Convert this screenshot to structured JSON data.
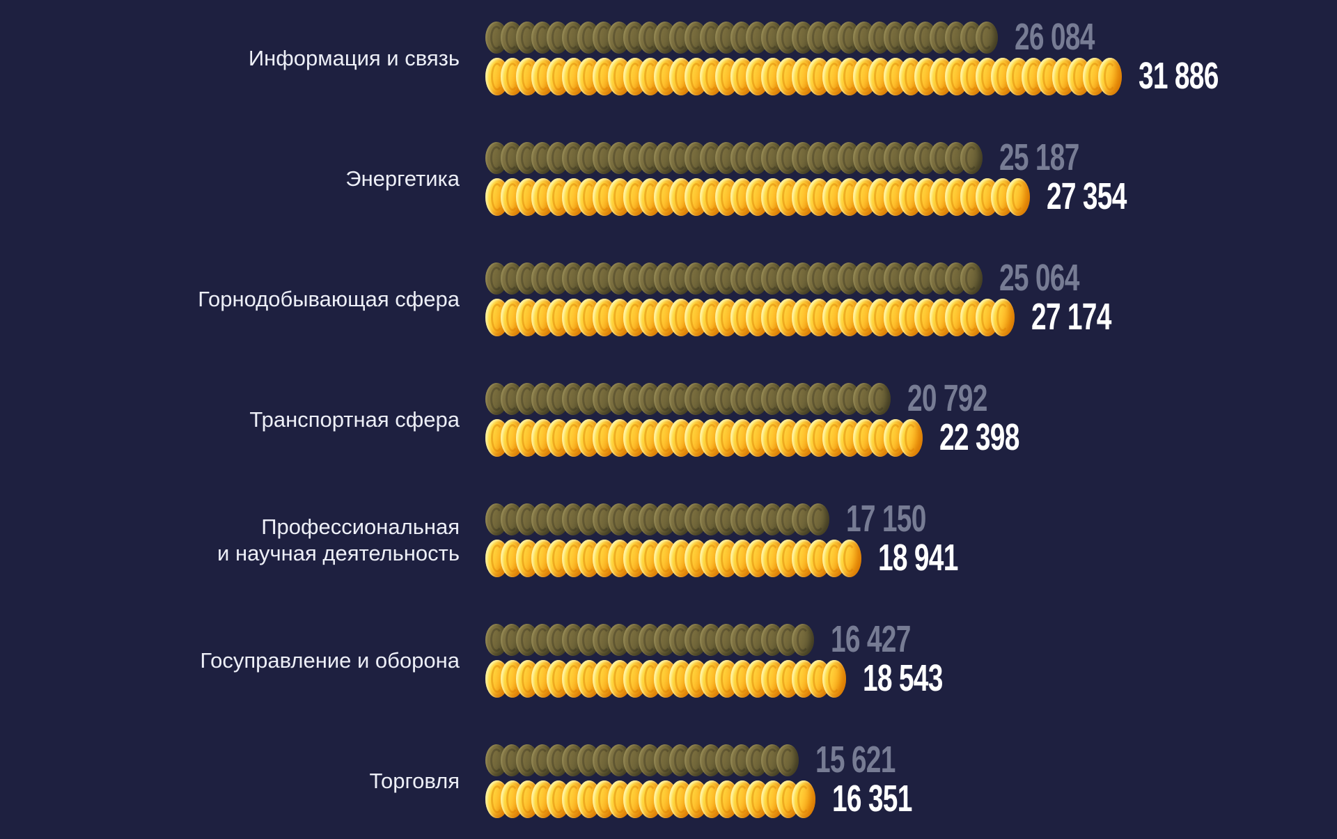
{
  "colors": {
    "background": "#1e2040",
    "label_text": "#edeff7",
    "secondary_value_text": "#777c94",
    "primary_value_text": "#ffffff",
    "gold_coin_bright": "#ffd83f",
    "gold_coin_deep": "#e98900",
    "dark_coin_light": "#867a4a",
    "dark_coin_deep": "#575030"
  },
  "chart_data": {
    "type": "bar",
    "orientation": "horizontal",
    "title": "",
    "xlabel": "",
    "ylabel": "",
    "grid": false,
    "legend_position": "none",
    "max_value": 31886,
    "categories": [
      "Информация и связь",
      "Энергетика",
      "Горнодобывающая сфера",
      "Транспортная сфера",
      "Профессиональная и научная деятельность",
      "Госуправление и оборона",
      "Торговля"
    ],
    "series": [
      {
        "name": "secondary",
        "values": [
          26084,
          25187,
          25064,
          20792,
          17150,
          16427,
          15621
        ]
      },
      {
        "name": "primary",
        "values": [
          31886,
          27354,
          27174,
          22398,
          18941,
          18543,
          16351
        ]
      }
    ],
    "rows": [
      {
        "label_lines": [
          "Информация и связь"
        ],
        "secondary": 26084,
        "secondary_label": "26 084",
        "primary": 31886,
        "primary_label": "31 886"
      },
      {
        "label_lines": [
          "Энергетика"
        ],
        "secondary": 25187,
        "secondary_label": "25 187",
        "primary": 27354,
        "primary_label": "27 354"
      },
      {
        "label_lines": [
          "Горнодобывающая сфера"
        ],
        "secondary": 25064,
        "secondary_label": "25 064",
        "primary": 27174,
        "primary_label": "27 174"
      },
      {
        "label_lines": [
          "Транспортная сфера"
        ],
        "secondary": 20792,
        "secondary_label": "20 792",
        "primary": 22398,
        "primary_label": "22 398"
      },
      {
        "label_lines": [
          "Профессиональная",
          "и научная деятельность"
        ],
        "secondary": 17150,
        "secondary_label": "17 150",
        "primary": 18941,
        "primary_label": "18 941"
      },
      {
        "label_lines": [
          "Госуправление и оборона"
        ],
        "secondary": 16427,
        "secondary_label": "16 427",
        "primary": 18543,
        "primary_label": "18 543"
      },
      {
        "label_lines": [
          "Торговля"
        ],
        "secondary": 15621,
        "secondary_label": "15 621",
        "primary": 16351,
        "primary_label": "16 351"
      }
    ]
  }
}
